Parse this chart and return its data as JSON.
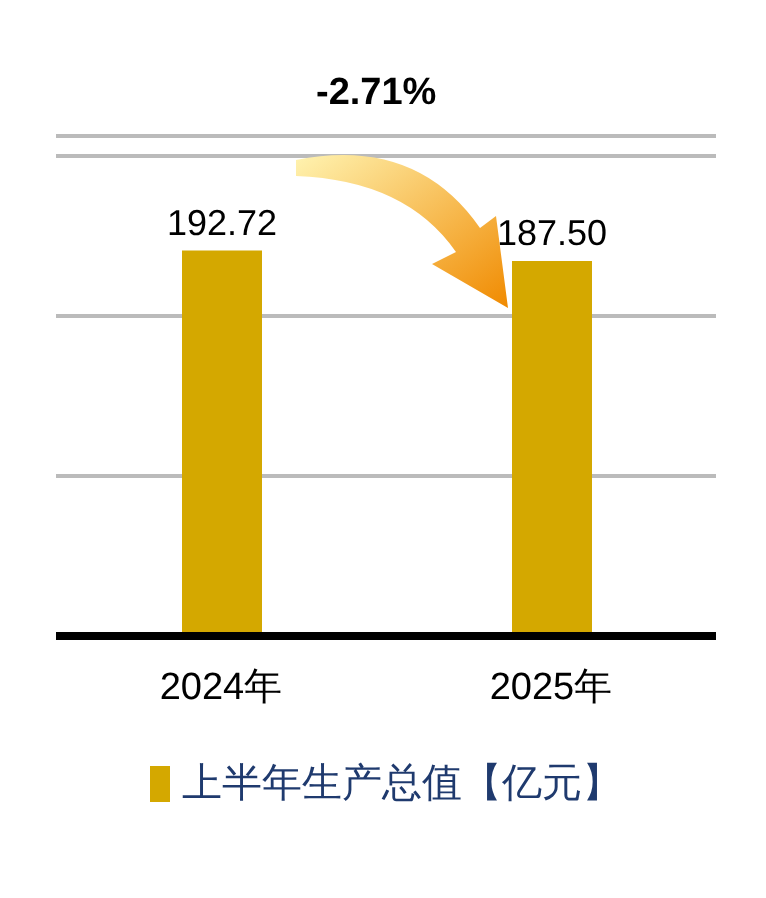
{
  "chart_data": {
    "type": "bar",
    "categories": [
      "2024年",
      "2025年"
    ],
    "series": [
      {
        "name": "上半年生产总值【亿元】",
        "color": "#d4a800",
        "values": [
          192.72,
          187.5
        ],
        "value_labels": [
          "192.72",
          "187.50"
        ]
      }
    ],
    "ylim": [
      0,
      250
    ],
    "yticks": [
      {
        "value": 80,
        "label": null
      },
      {
        "value": 160,
        "label": null
      },
      {
        "value": 240,
        "label": null
      }
    ],
    "tick_labels": "x",
    "grid": "y",
    "legend": "bottom",
    "annotations": [
      "-2.71%"
    ]
  }
}
